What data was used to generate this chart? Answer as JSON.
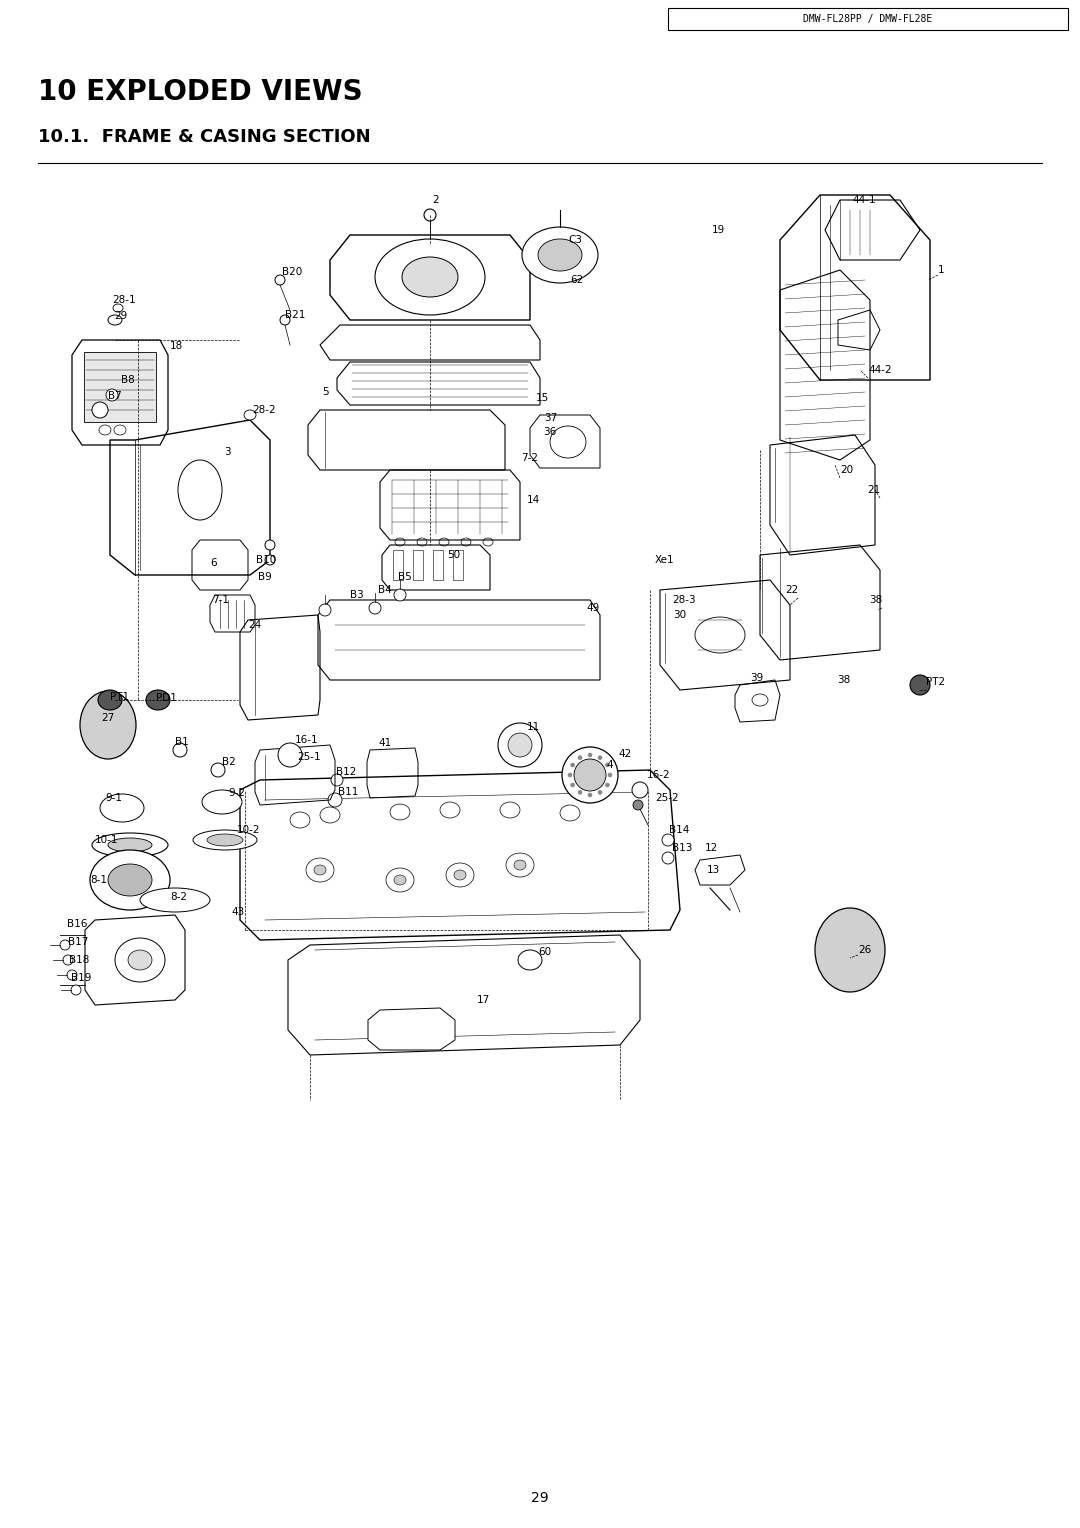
{
  "page_number": "29",
  "header_text": "DMW-FL28PP / DMW-FL28E",
  "title": "10 EXPLODED VIEWS",
  "subtitle": "10.1.  FRAME & CASING SECTION",
  "background_color": "#ffffff",
  "text_color": "#000000",
  "title_fontsize": 20,
  "subtitle_fontsize": 13,
  "header_fontsize": 7,
  "page_num_fontsize": 10,
  "fig_width": 10.8,
  "fig_height": 15.28,
  "dpi": 100
}
